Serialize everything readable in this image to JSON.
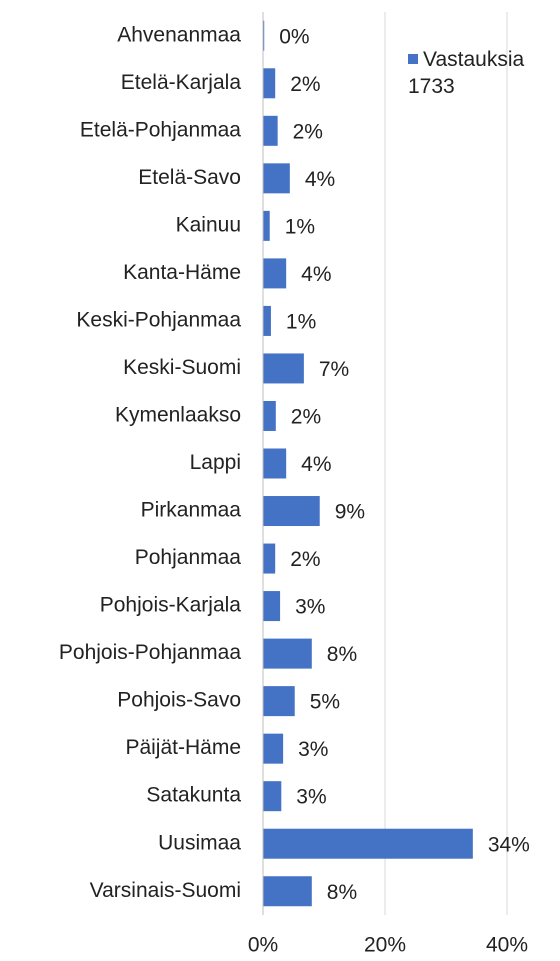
{
  "chart_data": {
    "type": "barh",
    "categories": [
      "Ahvenanmaa",
      "Etelä-Karjala",
      "Etelä-Pohjanmaa",
      "Etelä-Savo",
      "Kainuu",
      "Kanta-Häme",
      "Keski-Pohjanmaa",
      "Keski-Suomi",
      "Kymenlaakso",
      "Lappi",
      "Pirkanmaa",
      "Pohjanmaa",
      "Pohjois-Karjala",
      "Pohjois-Pohjanmaa",
      "Pohjois-Savo",
      "Päijät-Häme",
      "Satakunta",
      "Uusimaa",
      "Varsinais-Suomi"
    ],
    "series": [
      {
        "name": "Vastauksia 1733",
        "color": "#4472c4",
        "values": [
          0.2,
          2.0,
          2.4,
          4.4,
          1.1,
          3.8,
          1.3,
          6.7,
          2.1,
          3.8,
          9.3,
          2.0,
          2.8,
          8.0,
          5.2,
          3.3,
          3.0,
          34.4,
          8.0
        ],
        "value_labels": [
          "0%",
          "2%",
          "2%",
          "4%",
          "1%",
          "4%",
          "1%",
          "7%",
          "2%",
          "4%",
          "9%",
          "2%",
          "3%",
          "8%",
          "5%",
          "3%",
          "3%",
          "34%",
          "8%"
        ]
      }
    ],
    "xlim": [
      0,
      40
    ],
    "xticks": [
      {
        "value": 0,
        "label": "0%"
      },
      {
        "value": 20,
        "label": "20%"
      },
      {
        "value": 40,
        "label": "40%"
      }
    ],
    "grid": true,
    "legend": "top-right"
  }
}
